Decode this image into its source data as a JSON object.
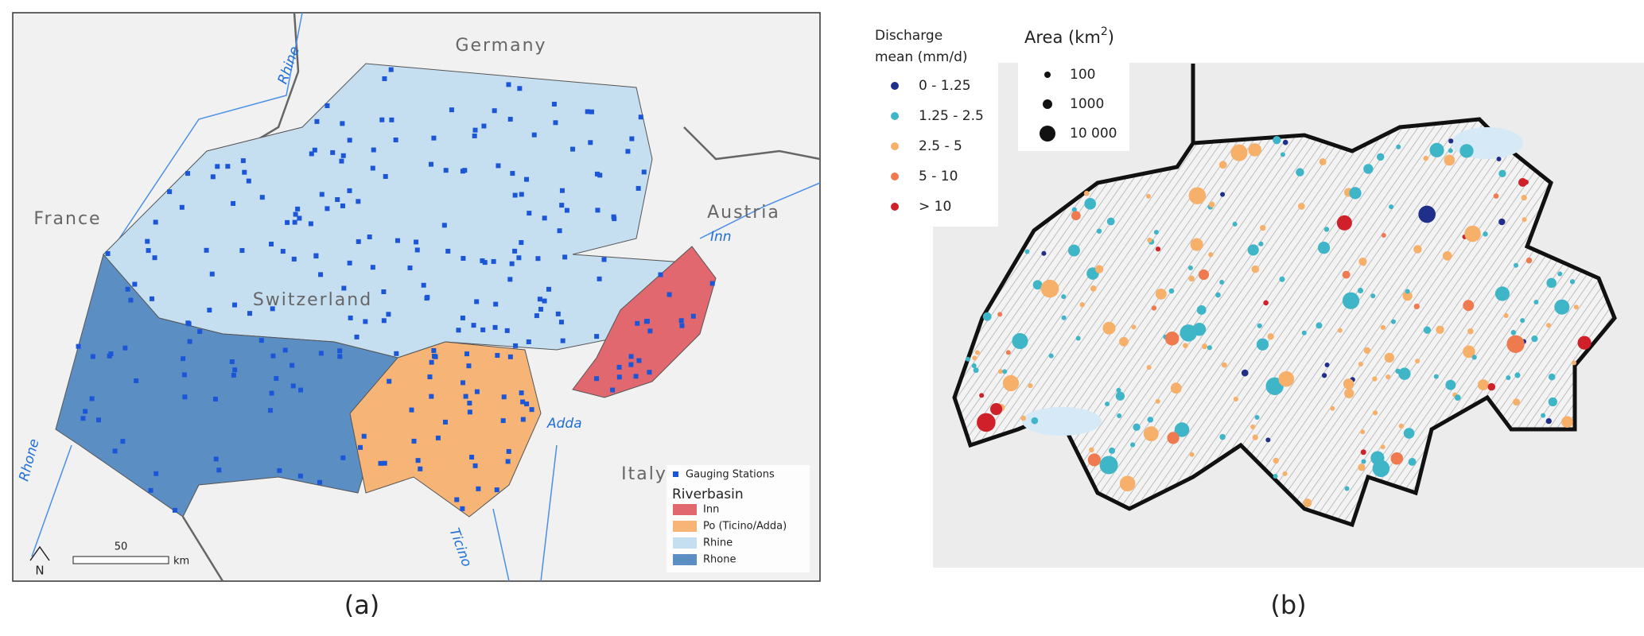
{
  "panel_a": {
    "label": "(a)",
    "countries": [
      "Germany",
      "France",
      "Austria",
      "Switzerland",
      "Italy"
    ],
    "rivers": [
      "Rhine",
      "Inn",
      "Adda",
      "Ticino",
      "Rhone"
    ],
    "legend": {
      "stations": "Gauging Stations",
      "title": "Riverbasin",
      "items": [
        "Inn",
        "Po (Ticino/Adda)",
        "Rhine",
        "Rhone"
      ]
    },
    "scale": {
      "distance": "50",
      "unit": "km"
    },
    "north": "N"
  },
  "panel_b": {
    "label": "(b)",
    "discharge": {
      "title_lines": [
        "Discharge",
        "mean (mm/d)"
      ],
      "items": [
        "0 - 1.25",
        "1.25 - 2.5",
        "2.5 - 5",
        "5 - 10",
        "> 10"
      ]
    },
    "area": {
      "title": "Area (km",
      "sup": "2",
      "after": ")",
      "items": [
        "100",
        "1000",
        "10 000"
      ]
    }
  }
}
